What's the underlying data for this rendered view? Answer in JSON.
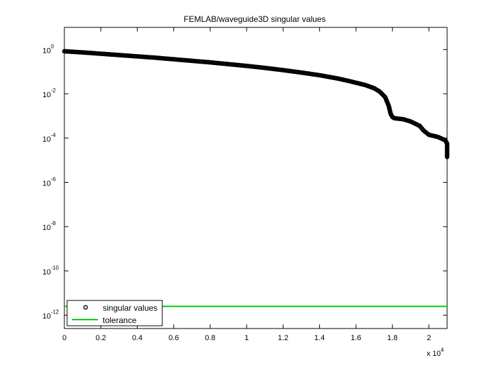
{
  "chart_data": {
    "type": "scatter",
    "title": "FEMLAB/waveguide3D singular values",
    "xlabel": "",
    "ylabel": "",
    "x_scale_label": "x 10",
    "x_scale_exponent": "4",
    "x_scale_factor": 10000,
    "xlim": [
      0,
      2.1
    ],
    "ylim_log10": [
      -12.6,
      1.0
    ],
    "y_scale": "log",
    "grid": false,
    "legend_position": "bottom-left",
    "x_ticks": [
      "0",
      "0.2",
      "0.4",
      "0.6",
      "0.8",
      "1",
      "1.2",
      "1.4",
      "1.6",
      "1.8",
      "2"
    ],
    "x_tick_values": [
      0,
      0.2,
      0.4,
      0.6,
      0.8,
      1.0,
      1.2,
      1.4,
      1.6,
      1.8,
      2.0
    ],
    "y_ticks": [
      {
        "base": "10",
        "exp": "0",
        "log10": 0
      },
      {
        "base": "10",
        "exp": "-2",
        "log10": -2
      },
      {
        "base": "10",
        "exp": "-4",
        "log10": -4
      },
      {
        "base": "10",
        "exp": "-6",
        "log10": -6
      },
      {
        "base": "10",
        "exp": "-8",
        "log10": -8
      },
      {
        "base": "10",
        "exp": "-10",
        "log10": -10
      },
      {
        "base": "10",
        "exp": "-12",
        "log10": -12
      }
    ],
    "series": [
      {
        "name": "singular values",
        "marker": "circle",
        "color": "#000000",
        "x": [
          0,
          0.1,
          0.2,
          0.3,
          0.4,
          0.5,
          0.6,
          0.7,
          0.8,
          0.9,
          1.0,
          1.1,
          1.2,
          1.3,
          1.4,
          1.5,
          1.55,
          1.6,
          1.65,
          1.7,
          1.73,
          1.76,
          1.78,
          1.79,
          1.8,
          1.81,
          1.83,
          1.86,
          1.9,
          1.95,
          1.97,
          2.0,
          2.05,
          2.09,
          2.1,
          2.1,
          2.1
        ],
        "y_log10": [
          -0.08,
          -0.13,
          -0.19,
          -0.25,
          -0.31,
          -0.37,
          -0.44,
          -0.51,
          -0.58,
          -0.66,
          -0.74,
          -0.83,
          -0.93,
          -1.04,
          -1.16,
          -1.31,
          -1.4,
          -1.5,
          -1.6,
          -1.75,
          -1.9,
          -2.15,
          -2.55,
          -2.9,
          -3.05,
          -3.1,
          -3.12,
          -3.15,
          -3.25,
          -3.45,
          -3.65,
          -3.85,
          -3.95,
          -4.1,
          -4.25,
          -4.62,
          -4.85
        ]
      },
      {
        "name": "tolerance",
        "marker": "line",
        "color": "#00cc00",
        "y_log10": -11.6
      }
    ]
  }
}
